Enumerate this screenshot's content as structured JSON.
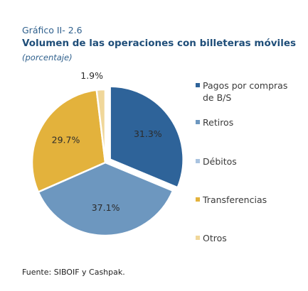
{
  "figure": {
    "label": "Gráfico II- 2.6",
    "title": "Volumen de las operaciones con billeteras móviles",
    "subtitle": "(porcentaje)",
    "source": "Fuente: SIBOIF y Cashpak."
  },
  "chart_data": {
    "type": "pie",
    "slices": [
      {
        "name": "Pagos por compras de B/S",
        "value": 31.3,
        "label": "31.3%",
        "color": "#2e6399",
        "exploded": true
      },
      {
        "name": "Retiros",
        "value": 37.1,
        "label": "37.1%",
        "color": "#6d97bf",
        "exploded": false
      },
      {
        "name": "Débitos",
        "value": 0.0,
        "label": "",
        "color": "#a9c3e0",
        "exploded": false
      },
      {
        "name": "Transferencias",
        "value": 29.7,
        "label": "29.7%",
        "color": "#e3b23c",
        "exploded": false
      },
      {
        "name": "Otros",
        "value": 1.9,
        "label": "1.9%",
        "color": "#f0d79a",
        "exploded": false
      }
    ],
    "legend_position": "right"
  },
  "legend": [
    {
      "text": "Pagos por compras\nde B/S",
      "color": "#2e6399"
    },
    {
      "text": "Retiros",
      "color": "#6d97bf"
    },
    {
      "text": "Débitos",
      "color": "#a9c3e0"
    },
    {
      "text": "Transferencias",
      "color": "#e3b23c"
    },
    {
      "text": "Otros",
      "color": "#f0d79a"
    }
  ]
}
